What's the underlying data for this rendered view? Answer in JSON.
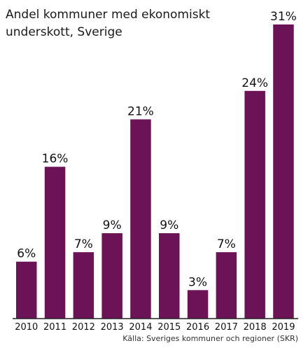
{
  "chart_data": {
    "type": "bar",
    "title_lines": [
      "Andel kommuner med ekonomiskt",
      "underskott, Sverige"
    ],
    "categories": [
      "2010",
      "2011",
      "2012",
      "2013",
      "2014",
      "2015",
      "2016",
      "2017",
      "2018",
      "2019"
    ],
    "values": [
      6,
      16,
      7,
      9,
      21,
      9,
      3,
      7,
      24,
      31
    ],
    "value_labels": [
      "6%",
      "16%",
      "7%",
      "9%",
      "21%",
      "9%",
      "3%",
      "7%",
      "24%",
      "31%"
    ],
    "ylim": [
      0,
      32
    ],
    "grid": false,
    "source": "Källa: Sveriges kommuner och regioner (SKR)",
    "colors": {
      "bar": "#6b1356",
      "axis": "#222222"
    }
  }
}
